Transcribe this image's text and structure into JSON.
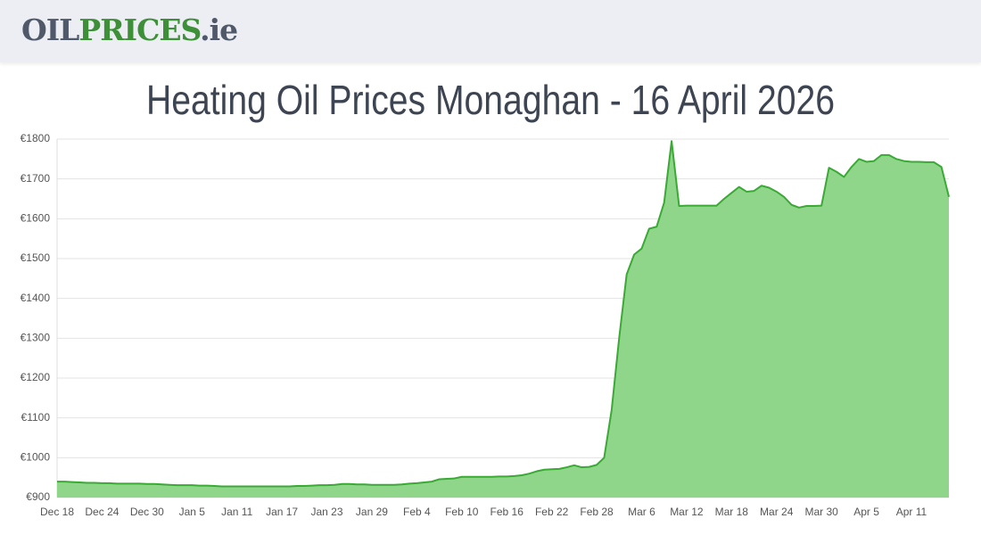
{
  "header": {
    "logo": [
      "OIL",
      "PRICES",
      ".ie"
    ]
  },
  "chart_data": {
    "type": "area",
    "title": "Heating Oil Prices Monaghan - 16 April 2026",
    "categories": [
      "Dec 18",
      null,
      null,
      null,
      null,
      null,
      "Dec 24",
      null,
      null,
      null,
      null,
      null,
      "Dec 30",
      null,
      null,
      null,
      null,
      null,
      "Jan 5",
      null,
      null,
      null,
      null,
      null,
      "Jan 11",
      null,
      null,
      null,
      null,
      null,
      "Jan 17",
      null,
      null,
      null,
      null,
      null,
      "Jan 23",
      null,
      null,
      null,
      null,
      null,
      "Jan 29",
      null,
      null,
      null,
      null,
      null,
      "Feb 4",
      null,
      null,
      null,
      null,
      null,
      "Feb 10",
      null,
      null,
      null,
      null,
      null,
      "Feb 16",
      null,
      null,
      null,
      null,
      null,
      "Feb 22",
      null,
      null,
      null,
      null,
      null,
      "Feb 28",
      null,
      null,
      null,
      null,
      null,
      "Mar 6",
      null,
      null,
      null,
      null,
      null,
      "Mar 12",
      null,
      null,
      null,
      null,
      null,
      "Mar 18",
      null,
      null,
      null,
      null,
      null,
      "Mar 24",
      null,
      null,
      null,
      null,
      null,
      "Mar 30",
      null,
      null,
      null,
      null,
      null,
      "Apr 5",
      null,
      null,
      null,
      null,
      null,
      "Apr 11",
      null,
      null,
      null,
      null,
      null
    ],
    "values": [
      940,
      940,
      939,
      938,
      937,
      937,
      936,
      936,
      935,
      935,
      935,
      935,
      934,
      934,
      933,
      932,
      931,
      931,
      931,
      930,
      930,
      929,
      928,
      928,
      928,
      928,
      928,
      928,
      928,
      928,
      928,
      928,
      929,
      929,
      930,
      931,
      931,
      932,
      934,
      934,
      933,
      933,
      932,
      932,
      932,
      932,
      933,
      935,
      936,
      938,
      940,
      946,
      947,
      948,
      952,
      952,
      952,
      952,
      952,
      953,
      953,
      954,
      956,
      960,
      966,
      970,
      971,
      972,
      976,
      981,
      976,
      977,
      982,
      1000,
      1120,
      1300,
      1460,
      1510,
      1525,
      1575,
      1580,
      1640,
      1795,
      1632,
      1633,
      1633,
      1633,
      1633,
      1633,
      1650,
      1665,
      1680,
      1668,
      1670,
      1683,
      1678,
      1668,
      1655,
      1635,
      1628,
      1632,
      1632,
      1633,
      1728,
      1718,
      1705,
      1730,
      1750,
      1743,
      1745,
      1760,
      1760,
      1750,
      1745,
      1743,
      1743,
      1742,
      1742,
      1730,
      1655
    ],
    "color": "#3aaa35",
    "fill_color": "#8fd68b",
    "ylim": [
      900,
      1800
    ],
    "yticks": [
      {
        "value": 900,
        "label": "€900"
      },
      {
        "value": 1000,
        "label": "€1000"
      },
      {
        "value": 1100,
        "label": "€1100"
      },
      {
        "value": 1200,
        "label": "€1200"
      },
      {
        "value": 1300,
        "label": "€1300"
      },
      {
        "value": 1400,
        "label": "€1400"
      },
      {
        "value": 1500,
        "label": "€1500"
      },
      {
        "value": 1600,
        "label": "€1600"
      },
      {
        "value": 1700,
        "label": "€1700"
      },
      {
        "value": 1800,
        "label": "€1800"
      }
    ],
    "grid": true
  }
}
